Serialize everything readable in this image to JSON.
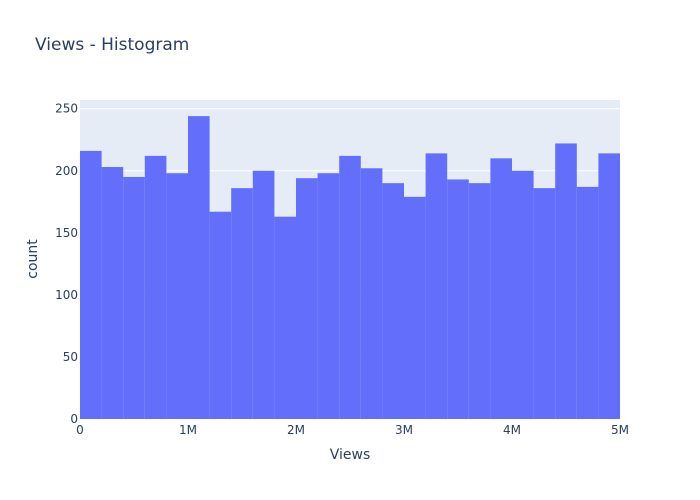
{
  "chart_data": {
    "type": "bar",
    "title": "Views - Histogram",
    "xlabel": "Views",
    "ylabel": "count",
    "bin_size": 200000,
    "bin_start": 0,
    "values": [
      216,
      203,
      195,
      212,
      198,
      244,
      167,
      186,
      200,
      163,
      194,
      198,
      212,
      202,
      190,
      179,
      214,
      193,
      190,
      210,
      200,
      186,
      222,
      187,
      214
    ],
    "xlim": [
      0,
      5000000
    ],
    "ylim": [
      0,
      257
    ],
    "x_ticks": [
      {
        "value": 0,
        "label": "0"
      },
      {
        "value": 1000000,
        "label": "1M"
      },
      {
        "value": 2000000,
        "label": "2M"
      },
      {
        "value": 3000000,
        "label": "3M"
      },
      {
        "value": 4000000,
        "label": "4M"
      },
      {
        "value": 5000000,
        "label": "5M"
      }
    ],
    "y_ticks": [
      {
        "value": 0,
        "label": "0"
      },
      {
        "value": 50,
        "label": "50"
      },
      {
        "value": 100,
        "label": "100"
      },
      {
        "value": 150,
        "label": "150"
      },
      {
        "value": 200,
        "label": "200"
      },
      {
        "value": 250,
        "label": "250"
      }
    ],
    "grid": true,
    "bar_color": "#636efa",
    "plot_bg": "#e5ecf6",
    "text_color": "#2a3f5f"
  }
}
